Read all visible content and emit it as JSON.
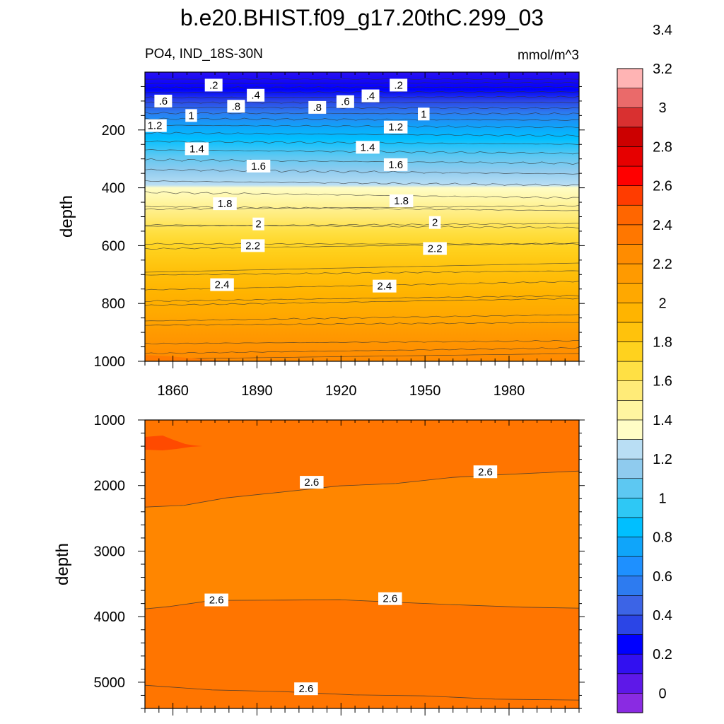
{
  "chart_data": {
    "type": "heatmap",
    "title": "b.e20.BHIST.f09_g17.20thC.299_03",
    "variable_label": "PO4, IND_18S-30N",
    "units_label": "mmol/m^3",
    "ylabel": "depth",
    "x_range": [
      1850,
      2005
    ],
    "x_ticks": [
      "1860",
      "1890",
      "1920",
      "1950",
      "1980"
    ],
    "upper_panel": {
      "ylim": [
        0,
        1000
      ],
      "y_ticks": [
        "200",
        "400",
        "600",
        "800",
        "1000"
      ]
    },
    "lower_panel": {
      "ylim": [
        1000,
        5400
      ],
      "y_ticks": [
        "1000",
        "2000",
        "3000",
        "4000",
        "5000"
      ]
    },
    "colorbar": {
      "levels": [
        "0",
        "0.2",
        "0.4",
        "0.6",
        "0.8",
        "1",
        "1.2",
        "1.4",
        "1.6",
        "1.8",
        "2",
        "2.2",
        "2.4",
        "2.6",
        "2.8",
        "3",
        "3.2",
        "3.4"
      ],
      "colors": [
        "#8a2be2",
        "#5e18e8",
        "#3210f0",
        "#0000ff",
        "#2b45e6",
        "#3c64e6",
        "#2d7bf0",
        "#1e90ff",
        "#0fa5fa",
        "#00bfff",
        "#2ec8f5",
        "#5dc8f2",
        "#8fcbee",
        "#b9def4",
        "#fffdc6",
        "#fff5a0",
        "#ffeb78",
        "#ffe044",
        "#ffd21e",
        "#ffc20c",
        "#ffb400",
        "#ffa800",
        "#ff9a00",
        "#ff8c00",
        "#ff7700",
        "#ff6600",
        "#ff3c00",
        "#ff0000",
        "#e60000",
        "#cc0000",
        "#d93030",
        "#ea6a6a",
        "#ffb4b4"
      ]
    },
    "upper_contour_labels": [
      {
        "text": ".2",
        "year": 1871,
        "depth": 45
      },
      {
        "text": ".2",
        "year": 1937,
        "depth": 45
      },
      {
        "text": ".6",
        "year": 1853,
        "depth": 100
      },
      {
        "text": ".4",
        "year": 1886,
        "depth": 80
      },
      {
        "text": ".8",
        "year": 1879,
        "depth": 118
      },
      {
        "text": ".8",
        "year": 1908,
        "depth": 122
      },
      {
        "text": ".6",
        "year": 1918,
        "depth": 102
      },
      {
        "text": ".4",
        "year": 1927,
        "depth": 82
      },
      {
        "text": "1",
        "year": 1863,
        "depth": 150
      },
      {
        "text": "1",
        "year": 1946,
        "depth": 145
      },
      {
        "text": "1.2",
        "year": 1850,
        "depth": 185
      },
      {
        "text": "1.2",
        "year": 1936,
        "depth": 190
      },
      {
        "text": "1.4",
        "year": 1865,
        "depth": 265
      },
      {
        "text": "1.4",
        "year": 1926,
        "depth": 260
      },
      {
        "text": "1.6",
        "year": 1887,
        "depth": 325
      },
      {
        "text": "1.6",
        "year": 1936,
        "depth": 320
      },
      {
        "text": "1.8",
        "year": 1875,
        "depth": 455
      },
      {
        "text": "1.8",
        "year": 1938,
        "depth": 445
      },
      {
        "text": "2",
        "year": 1887,
        "depth": 525
      },
      {
        "text": "2",
        "year": 1950,
        "depth": 520
      },
      {
        "text": "2.2",
        "year": 1885,
        "depth": 600
      },
      {
        "text": "2.2",
        "year": 1950,
        "depth": 610
      },
      {
        "text": "2.4",
        "year": 1874,
        "depth": 735
      },
      {
        "text": "2.4",
        "year": 1932,
        "depth": 740
      }
    ],
    "lower_contour_labels": [
      {
        "text": "2.6",
        "year": 1906,
        "depth": 1950
      },
      {
        "text": "2.6",
        "year": 1968,
        "depth": 1790
      },
      {
        "text": "2.6",
        "year": 1872,
        "depth": 3745
      },
      {
        "text": "2.6",
        "year": 1934,
        "depth": 3725
      },
      {
        "text": "2.6",
        "year": 1904,
        "depth": 5100
      }
    ]
  }
}
